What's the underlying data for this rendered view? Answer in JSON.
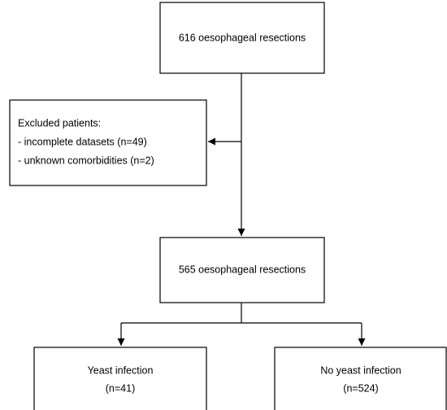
{
  "nodes": [
    {
      "label": "616 oesophageal resections"
    },
    {
      "lines": [
        "Excluded patients:",
        "- incomplete datasets (n=49)",
        "- unknown comorbidities (n=2)"
      ]
    },
    {
      "label": "565 oesophageal resections"
    },
    {
      "lines": [
        "Yeast infection",
        "(n=41)"
      ]
    },
    {
      "lines": [
        "No yeast infection",
        "(n=524)"
      ]
    }
  ]
}
